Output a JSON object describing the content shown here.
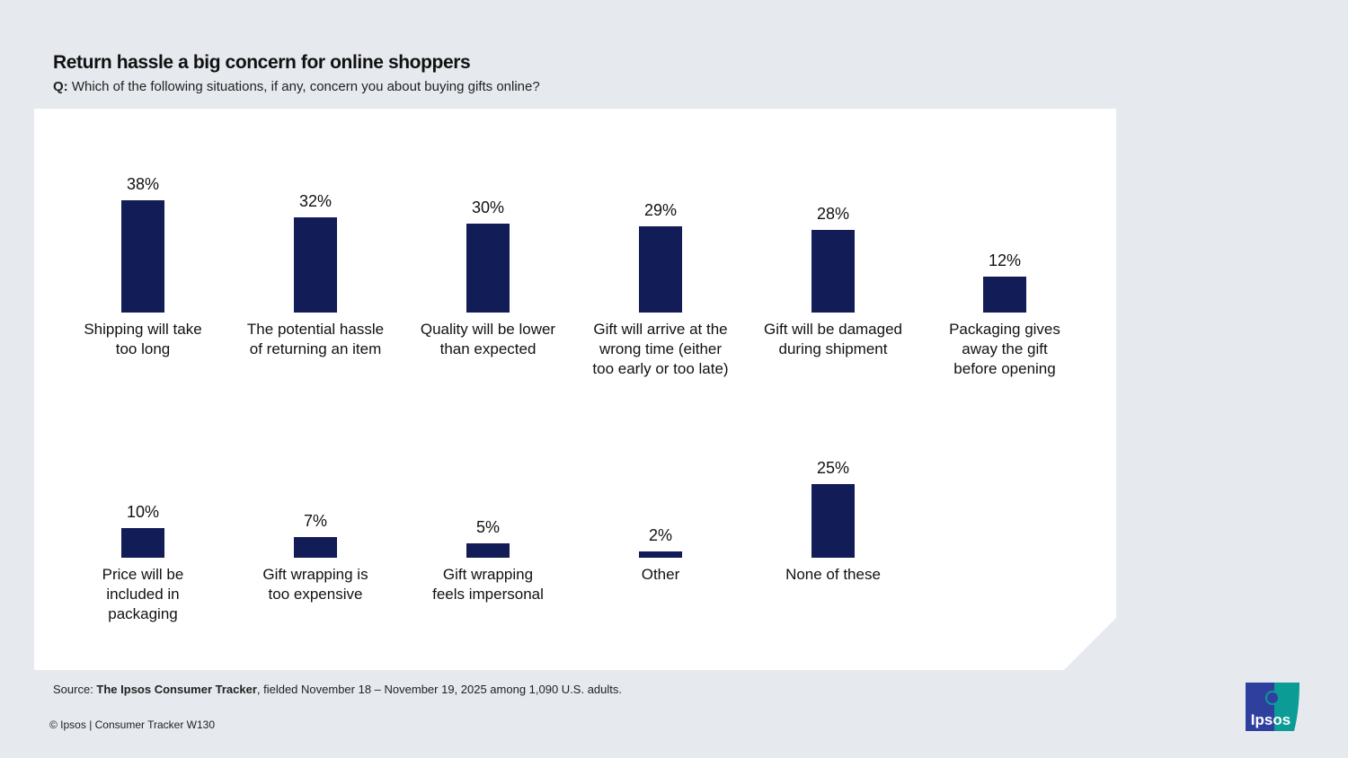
{
  "header": {
    "title": "Return hassle a big concern for online shoppers",
    "question_prefix": "Q:",
    "question": " Which of the following situations, if any, concern you about buying gifts online?"
  },
  "chart_data": {
    "type": "bar",
    "value_format": "percent",
    "bar_color": "#121c56",
    "rows": [
      {
        "categories": [
          "Shipping will take\ntoo long",
          "The potential hassle\nof returning an item",
          "Quality will be lower\nthan expected",
          "Gift will arrive at the\nwrong time (either\ntoo early or too late)",
          "Gift will be damaged\nduring shipment",
          "Packaging gives\naway the gift\nbefore opening"
        ],
        "values": [
          38,
          32,
          30,
          29,
          28,
          12
        ],
        "labels": [
          "38%",
          "32%",
          "30%",
          "29%",
          "28%",
          "12%"
        ]
      },
      {
        "categories": [
          "Price will be\nincluded in\npackaging",
          "Gift wrapping is\ntoo expensive",
          "Gift wrapping\nfeels impersonal",
          "Other",
          "None of these"
        ],
        "values": [
          10,
          7,
          5,
          2,
          25
        ],
        "labels": [
          "10%",
          "7%",
          "5%",
          "2%",
          "25%"
        ]
      }
    ]
  },
  "footer": {
    "source_prefix": "Source: ",
    "source_bold": "The Ipsos Consumer Tracker",
    "source_rest": ", fielded November 18 – November 19, 2025 among 1,090 U.S. adults.",
    "copyright": "© Ipsos | Consumer Tracker W130",
    "logo_text": "Ipsos",
    "logo_colors": [
      "#2f3f9e",
      "#0a9c95"
    ]
  }
}
